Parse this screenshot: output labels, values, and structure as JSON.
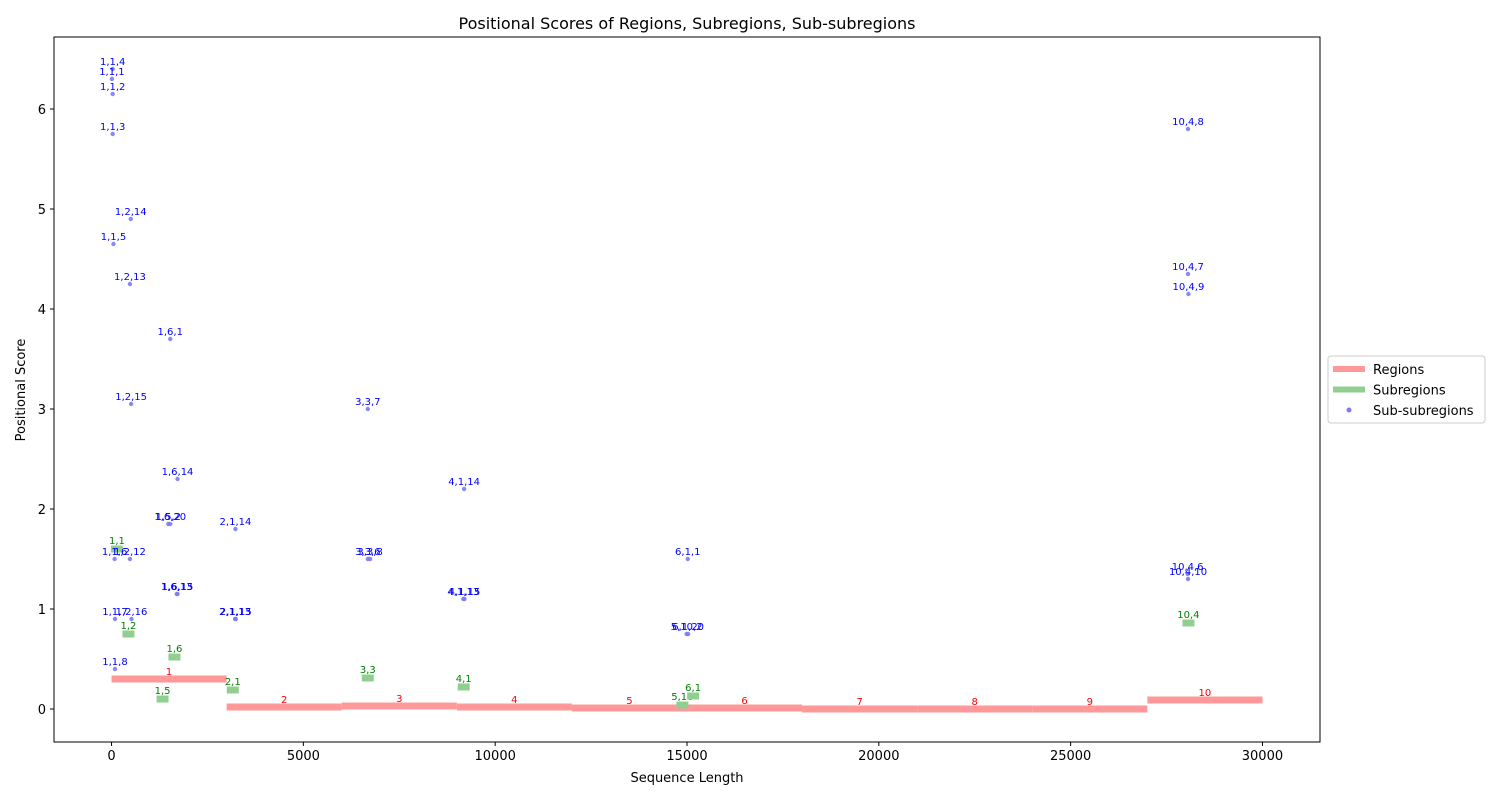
{
  "chart_data": {
    "type": "scatter",
    "title": "Positional Scores of Regions, Subregions, Sub-subregions",
    "xlabel": "Sequence Length",
    "ylabel": "Positional Score",
    "xlim": [
      -1500,
      31500
    ],
    "ylim": [
      -0.33,
      6.72
    ],
    "xticks": [
      0,
      5000,
      10000,
      15000,
      20000,
      25000,
      30000
    ],
    "yticks": [
      0,
      1,
      2,
      3,
      4,
      5,
      6
    ],
    "grid": false,
    "legend": {
      "placement": "right",
      "entries": [
        {
          "label": "Regions",
          "color": "#ff9999",
          "kind": "line"
        },
        {
          "label": "Subregions",
          "color": "#90cf90",
          "kind": "line"
        },
        {
          "label": "Sub-subregions",
          "color": "#7b7bf5",
          "kind": "dot"
        }
      ]
    },
    "colors": {
      "regions": "#ff9999",
      "region_label": "#ff0000",
      "subregions": "#90cf90",
      "subregion_label": "#008000",
      "subsub": "#7b7bf5",
      "subsub_label": "#0000ff"
    },
    "regions": [
      {
        "name": "1",
        "start": 0,
        "end": 3000,
        "score": 0.3
      },
      {
        "name": "2",
        "start": 3000,
        "end": 6000,
        "score": 0.02
      },
      {
        "name": "3",
        "start": 6000,
        "end": 9000,
        "score": 0.03
      },
      {
        "name": "4",
        "start": 9000,
        "end": 12000,
        "score": 0.02
      },
      {
        "name": "5",
        "start": 12000,
        "end": 15000,
        "score": 0.01
      },
      {
        "name": "6",
        "start": 15000,
        "end": 18000,
        "score": 0.01
      },
      {
        "name": "7",
        "start": 18000,
        "end": 21000,
        "score": 0.0
      },
      {
        "name": "8",
        "start": 21000,
        "end": 24000,
        "score": 0.0
      },
      {
        "name": "9",
        "start": 24000,
        "end": 27000,
        "score": 0.0
      },
      {
        "name": "10",
        "start": 27000,
        "end": 30000,
        "score": 0.09
      }
    ],
    "subregions": [
      {
        "name": "1,1",
        "x": 140,
        "score": 1.6
      },
      {
        "name": "1,2",
        "x": 440,
        "score": 0.75
      },
      {
        "name": "1,5",
        "x": 1330,
        "score": 0.1
      },
      {
        "name": "1,6",
        "x": 1640,
        "score": 0.52
      },
      {
        "name": "2,1",
        "x": 3160,
        "score": 0.19
      },
      {
        "name": "3,3",
        "x": 6680,
        "score": 0.31
      },
      {
        "name": "4,1",
        "x": 9180,
        "score": 0.22
      },
      {
        "name": "5,10",
        "x": 14880,
        "score": 0.04
      },
      {
        "name": "6,1",
        "x": 15160,
        "score": 0.13
      },
      {
        "name": "10,4",
        "x": 28070,
        "score": 0.86
      }
    ],
    "subsubregions": [
      {
        "name": "1,1,4",
        "x": 30,
        "score": 6.4
      },
      {
        "name": "1,1,1",
        "x": 10,
        "score": 6.3
      },
      {
        "name": "1,1,2",
        "x": 30,
        "score": 6.15
      },
      {
        "name": "1,1,3",
        "x": 30,
        "score": 5.75
      },
      {
        "name": "1,2,14",
        "x": 500,
        "score": 4.9
      },
      {
        "name": "1,1,5",
        "x": 50,
        "score": 4.65
      },
      {
        "name": "1,2,13",
        "x": 480,
        "score": 4.25
      },
      {
        "name": "1,6,1",
        "x": 1530,
        "score": 3.7
      },
      {
        "name": "1,2,15",
        "x": 510,
        "score": 3.05
      },
      {
        "name": "1,6,14",
        "x": 1720,
        "score": 2.3
      },
      {
        "name": "1,5,2",
        "x": 1480,
        "score": 1.85
      },
      {
        "name": "1,6,20",
        "x": 1530,
        "score": 1.85
      },
      {
        "name": "1,1,6",
        "x": 80,
        "score": 1.5
      },
      {
        "name": "1,2,12",
        "x": 480,
        "score": 1.5
      },
      {
        "name": "1,6,13",
        "x": 1700,
        "score": 1.15
      },
      {
        "name": "1,6,15",
        "x": 1720,
        "score": 1.15
      },
      {
        "name": "1,1,7",
        "x": 90,
        "score": 0.9
      },
      {
        "name": "1,2,16",
        "x": 520,
        "score": 0.9
      },
      {
        "name": "1,1,8",
        "x": 90,
        "score": 0.4
      },
      {
        "name": "2,1,14",
        "x": 3230,
        "score": 1.8
      },
      {
        "name": "2,1,13",
        "x": 3220,
        "score": 0.9
      },
      {
        "name": "2,1,15",
        "x": 3240,
        "score": 0.9
      },
      {
        "name": "3,3,7",
        "x": 6680,
        "score": 3.0
      },
      {
        "name": "3,3,6",
        "x": 6680,
        "score": 1.5
      },
      {
        "name": "3,3,8",
        "x": 6740,
        "score": 1.5
      },
      {
        "name": "4,1,14",
        "x": 9190,
        "score": 2.2
      },
      {
        "name": "4,1,13",
        "x": 9170,
        "score": 1.1
      },
      {
        "name": "4,1,15",
        "x": 9200,
        "score": 1.1
      },
      {
        "name": "6,1,1",
        "x": 15020,
        "score": 1.5
      },
      {
        "name": "5,10,2",
        "x": 14990,
        "score": 0.75
      },
      {
        "name": "6,1,20",
        "x": 15030,
        "score": 0.75
      },
      {
        "name": "10,4,8",
        "x": 28060,
        "score": 5.8
      },
      {
        "name": "10,4,7",
        "x": 28060,
        "score": 4.35
      },
      {
        "name": "10,4,9",
        "x": 28070,
        "score": 4.15
      },
      {
        "name": "10,4,6",
        "x": 28050,
        "score": 1.35
      },
      {
        "name": "10,4,10",
        "x": 28060,
        "score": 1.3
      }
    ]
  }
}
